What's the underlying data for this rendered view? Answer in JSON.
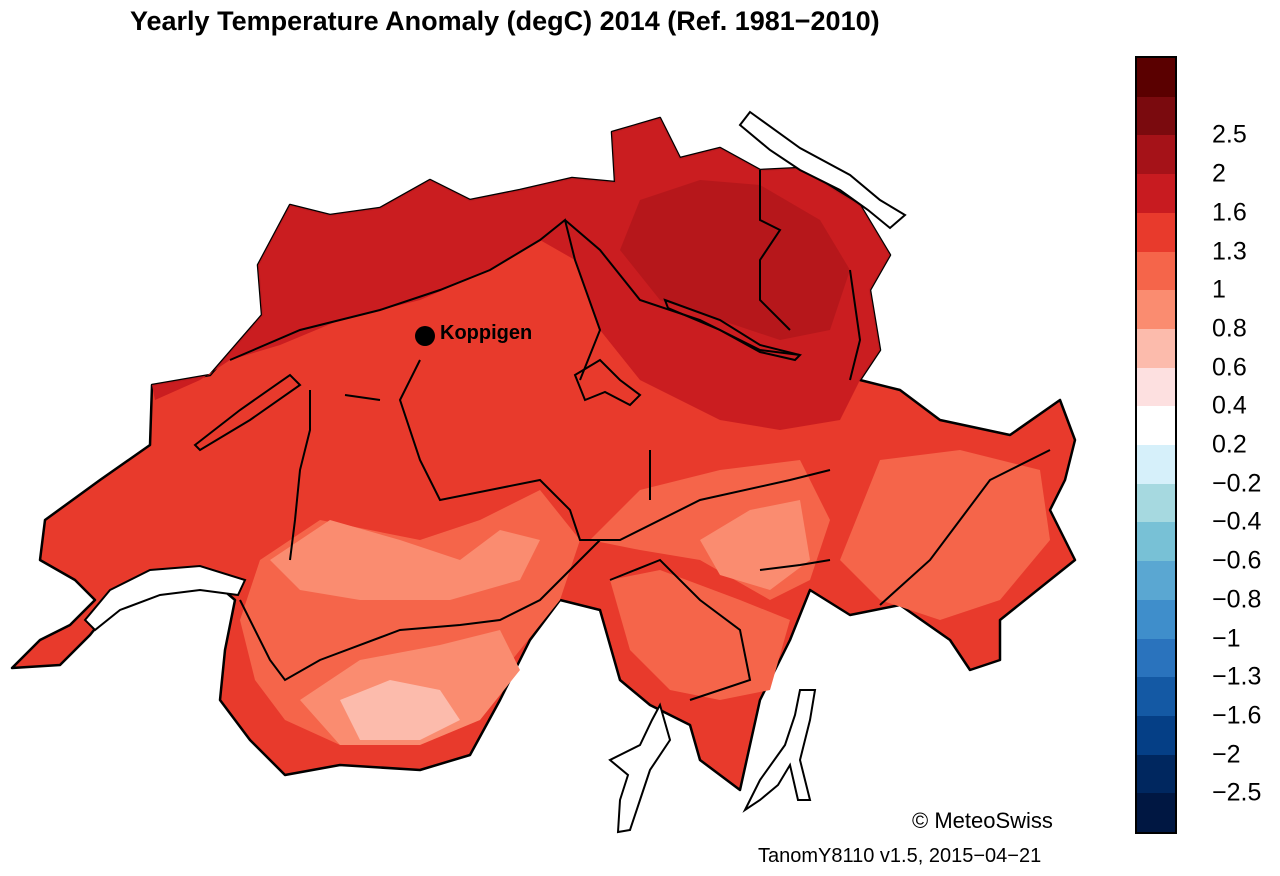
{
  "title": "Yearly Temperature Anomaly (degC) 2014  (Ref. 1981−2010)",
  "station": {
    "name": "Koppigen"
  },
  "legend": {
    "colors": [
      "#5a0000",
      "#7a0a0e",
      "#a51218",
      "#c81b20",
      "#e83a2c",
      "#f5654a",
      "#fa8c70",
      "#fcbbac",
      "#fde0e0",
      "#ffffff",
      "#d6f0fa",
      "#a6d9e0",
      "#78c1d6",
      "#5aa7d2",
      "#3f8ecb",
      "#2a73bd",
      "#1459a4",
      "#053f86",
      "#00275f",
      "#001742"
    ],
    "labels": [
      "2.5",
      "2",
      "1.6",
      "1.3",
      "1",
      "0.8",
      "0.6",
      "0.4",
      "0.2",
      "−0.2",
      "−0.4",
      "−0.6",
      "−0.8",
      "−1",
      "−1.3",
      "−1.6",
      "−2",
      "−2.5"
    ]
  },
  "copyright": "© MeteoSwiss",
  "version": "TanomY8110 v1.5, 2015−04−21"
}
